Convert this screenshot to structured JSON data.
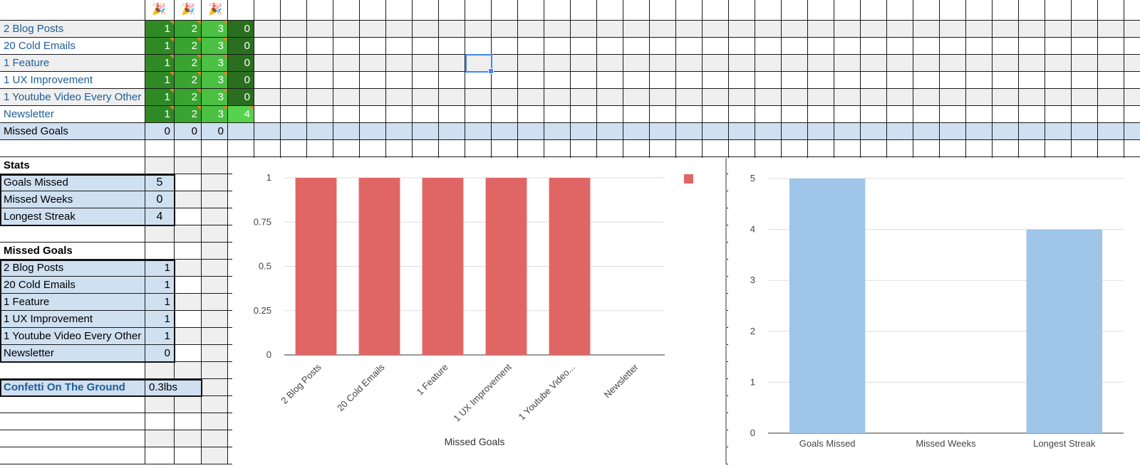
{
  "header_icons": [
    "party-popper-icon",
    "party-popper-icon",
    "party-popper-icon"
  ],
  "goals": [
    {
      "name": "2 Blog Posts",
      "weeks": [
        "1",
        "2",
        "3",
        "0"
      ]
    },
    {
      "name": "20 Cold Emails",
      "weeks": [
        "1",
        "2",
        "3",
        "0"
      ]
    },
    {
      "name": "1 Feature",
      "weeks": [
        "1",
        "2",
        "3",
        "0"
      ]
    },
    {
      "name": "1 UX Improvement",
      "weeks": [
        "1",
        "2",
        "3",
        "0"
      ]
    },
    {
      "name": "1 Youtube Video Every Other",
      "weeks": [
        "1",
        "2",
        "3",
        "0"
      ]
    },
    {
      "name": "Newsletter",
      "weeks": [
        "1",
        "2",
        "3",
        "4"
      ]
    }
  ],
  "missed_row": {
    "label": "Missed Goals",
    "values": [
      "0",
      "0",
      "0"
    ]
  },
  "stats": {
    "title": "Stats",
    "rows": [
      {
        "label": "Goals Missed",
        "value": "5"
      },
      {
        "label": "Missed Weeks",
        "value": "0"
      },
      {
        "label": "Longest Streak",
        "value": "4"
      }
    ]
  },
  "missed_goals": {
    "title": "Missed Goals",
    "rows": [
      {
        "label": "2 Blog Posts",
        "value": "1"
      },
      {
        "label": "20 Cold Emails",
        "value": "1"
      },
      {
        "label": "1 Feature",
        "value": "1"
      },
      {
        "label": "1 UX Improvement",
        "value": "1"
      },
      {
        "label": "1 Youtube Video Every Other",
        "value": "1"
      },
      {
        "label": "Newsletter",
        "value": "0"
      }
    ]
  },
  "confetti": {
    "label": "Confetti On The Ground",
    "value": "0.3lbs"
  },
  "colors": {
    "bar1": "#e06666",
    "bar2": "#9fc5e8",
    "accent": "#4285f4",
    "lightblue": "#cfe0f1"
  },
  "chart_data": [
    {
      "type": "bar",
      "categories": [
        "2 Blog Posts",
        "20 Cold Emails",
        "1 Feature",
        "1 UX Improvement",
        "1 Youtube Video...",
        "Newsletter"
      ],
      "series": [
        {
          "values": [
            1,
            1,
            1,
            1,
            1,
            0
          ]
        }
      ],
      "xlabel": "Missed Goals",
      "ylabel": "",
      "yticks": [
        "0",
        "0.25",
        "0.5",
        "0.75",
        "1"
      ],
      "ylim": [
        0,
        1
      ],
      "grid": true,
      "legend": "top-right"
    },
    {
      "type": "bar",
      "categories": [
        "Goals Missed",
        "Missed Weeks",
        "Longest Streak"
      ],
      "series": [
        {
          "values": [
            5,
            0,
            4
          ]
        }
      ],
      "xlabel": "",
      "ylabel": "",
      "yticks": [
        "0",
        "1",
        "2",
        "3",
        "4",
        "5"
      ],
      "ylim": [
        0,
        5
      ],
      "grid": true
    }
  ]
}
